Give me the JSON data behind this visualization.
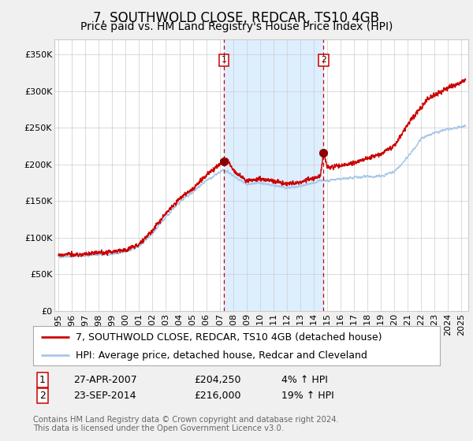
{
  "title": "7, SOUTHWOLD CLOSE, REDCAR, TS10 4GB",
  "subtitle": "Price paid vs. HM Land Registry's House Price Index (HPI)",
  "ylim": [
    0,
    370000
  ],
  "xlim_start": 1994.7,
  "xlim_end": 2025.5,
  "yticks": [
    0,
    50000,
    100000,
    150000,
    200000,
    250000,
    300000,
    350000
  ],
  "ytick_labels": [
    "£0",
    "£50K",
    "£100K",
    "£150K",
    "£200K",
    "£250K",
    "£300K",
    "£350K"
  ],
  "xticks": [
    1995,
    1996,
    1997,
    1998,
    1999,
    2000,
    2001,
    2002,
    2003,
    2004,
    2005,
    2006,
    2007,
    2008,
    2009,
    2010,
    2011,
    2012,
    2013,
    2014,
    2015,
    2016,
    2017,
    2018,
    2019,
    2020,
    2021,
    2022,
    2023,
    2024,
    2025
  ],
  "sale1_x": 2007.32,
  "sale1_y": 204250,
  "sale1_label": "1",
  "sale1_date": "27-APR-2007",
  "sale1_price": "£204,250",
  "sale1_hpi": "4% ↑ HPI",
  "sale2_x": 2014.73,
  "sale2_y": 216000,
  "sale2_label": "2",
  "sale2_date": "23-SEP-2014",
  "sale2_price": "£216,000",
  "sale2_hpi": "19% ↑ HPI",
  "hpi_line_color": "#a8c8e8",
  "price_line_color": "#cc0000",
  "shade_color": "#ddeeff",
  "dashed_color": "#cc0000",
  "marker_color": "#8b0000",
  "legend_house_label": "7, SOUTHWOLD CLOSE, REDCAR, TS10 4GB (detached house)",
  "legend_hpi_label": "HPI: Average price, detached house, Redcar and Cleveland",
  "footer": "Contains HM Land Registry data © Crown copyright and database right 2024.\nThis data is licensed under the Open Government Licence v3.0.",
  "background_color": "#f0f0f0",
  "plot_bg_color": "#ffffff",
  "title_fontsize": 12,
  "subtitle_fontsize": 10,
  "tick_fontsize": 8,
  "legend_fontsize": 9
}
